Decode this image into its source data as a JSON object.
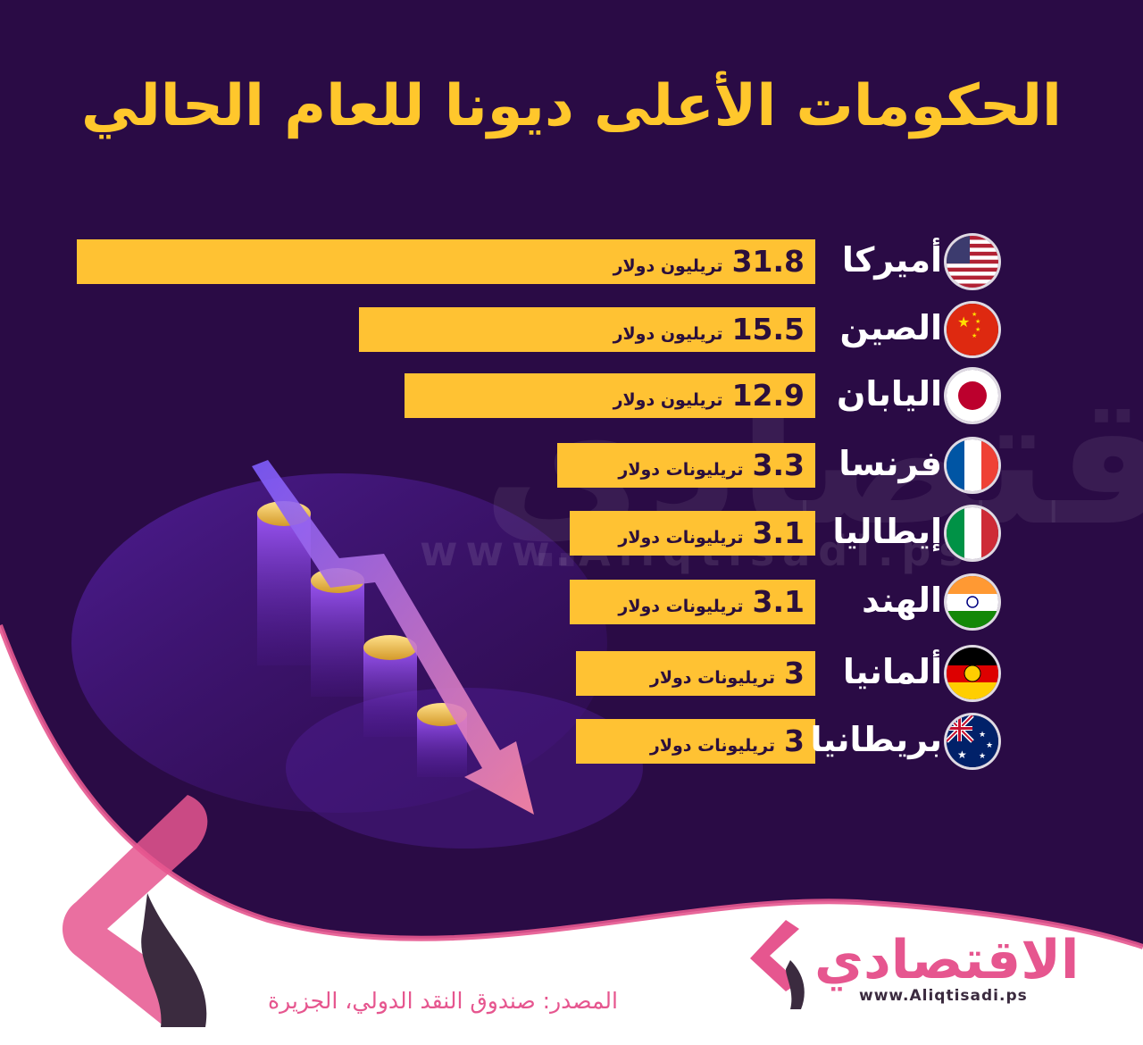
{
  "title": "الحكومات الأعلى ديونا للعام الحالي",
  "chart_data": {
    "type": "bar",
    "orientation": "horizontal",
    "title": "الحكومات الأعلى ديونا للعام الحالي",
    "categories": [
      "أميركا",
      "الصين",
      "اليابان",
      "فرنسا",
      "إيطاليا",
      "الهند",
      "ألمانيا",
      "بريطانيا"
    ],
    "values": [
      31.8,
      15.5,
      12.9,
      3.3,
      3.1,
      3.1,
      3,
      3
    ],
    "value_labels": [
      "31.8",
      "15.5",
      "12.9",
      "3.3",
      "3.1",
      "3.1",
      "3",
      "3"
    ],
    "unit_labels": [
      "تريليون دولار",
      "تريليون دولار",
      "تريليون دولار",
      "تريليونات دولار",
      "تريليونات دولار",
      "تريليونات دولار",
      "تريليونات دولار",
      "تريليونات دولار"
    ],
    "bar_color": "#ffc233"
  },
  "flags": [
    "us-flag-icon",
    "china-flag-icon",
    "japan-flag-icon",
    "france-flag-icon",
    "italy-flag-icon",
    "india-flag-icon",
    "germany-flag-icon",
    "australia-flag-icon"
  ],
  "source": "المصدر: صندوق النقد الدولي، الجزيرة",
  "logo": {
    "name": "الاقتصادي",
    "url": "www.Aliqtisadi.ps"
  },
  "watermark": "www.Aliqtisadi.ps",
  "colors": {
    "background": "#2a0b45",
    "accent": "#ffc72c",
    "brand_pink": "#e6568f"
  }
}
